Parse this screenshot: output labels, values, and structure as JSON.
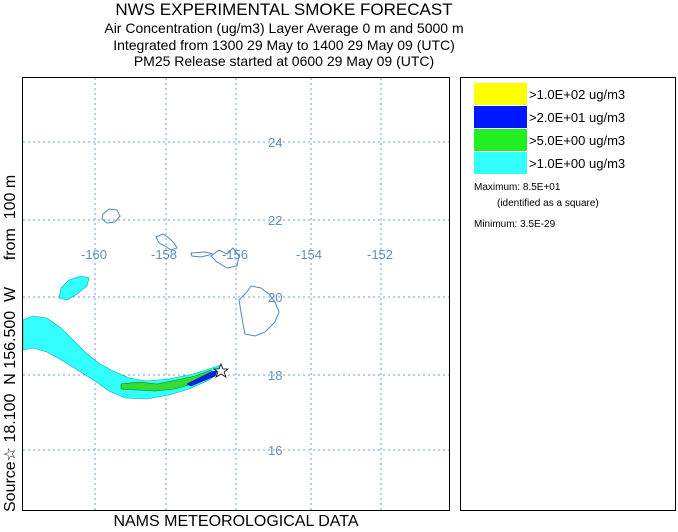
{
  "header": {
    "title": "NWS EXPERIMENTAL SMOKE FORECAST",
    "line1": "Air Concentration (ug/m3) Layer Average    0 m and  5000 m",
    "line2": "Integrated from 1300 29 May to 1400 29 May 09 (UTC)",
    "line3": "PM25 Release started at 0600 29 May 09 (UTC)"
  },
  "side_label": "Source☆ 18.100  N 156.500  W      from  100 m",
  "bottom_label": "NAMS METEOROLOGICAL DATA",
  "map": {
    "lon_ticks": [
      "-160",
      "-158",
      "-156",
      "-154",
      "-152"
    ],
    "lat_ticks": [
      "24",
      "22",
      "20",
      "18",
      "16"
    ],
    "source_marker": "star",
    "colors": {
      "grid": "#6aa0cf",
      "coast": "#4f88c0",
      "level1": "#33ffff",
      "level2": "#33dd33",
      "level3": "#0022ee"
    }
  },
  "legend": {
    "items": [
      {
        "label": ">1.0E+02 ug/m3",
        "color": "#ffff00"
      },
      {
        "label": ">2.0E+01 ug/m3",
        "color": "#0018ff"
      },
      {
        "label": ">5.0E+00 ug/m3",
        "color": "#22ee22"
      },
      {
        "label": ">1.0E+00 ug/m3",
        "color": "#33ffff"
      }
    ],
    "maximum": "Maximum: 8.5E+01",
    "maximum_note": "(identified as a square)",
    "minimum": "Minimum: 3.5E-29"
  }
}
